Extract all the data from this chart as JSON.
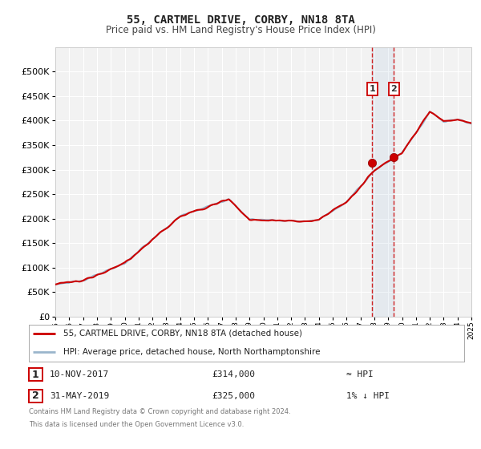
{
  "title": "55, CARTMEL DRIVE, CORBY, NN18 8TA",
  "subtitle": "Price paid vs. HM Land Registry's House Price Index (HPI)",
  "background_color": "#ffffff",
  "plot_bg_color": "#f2f2f2",
  "grid_color": "#ffffff",
  "hpi_color": "#9ab5cc",
  "price_color": "#cc0000",
  "sale1_date": 2017.86,
  "sale1_price": 314000,
  "sale2_date": 2019.41,
  "sale2_price": 325000,
  "ylim_max": 550000,
  "ylim_min": 0,
  "xlim_min": 1995,
  "xlim_max": 2025,
  "legend_label_price": "55, CARTMEL DRIVE, CORBY, NN18 8TA (detached house)",
  "legend_label_hpi": "HPI: Average price, detached house, North Northamptonshire",
  "annotation1_label": "1",
  "annotation2_label": "2",
  "table_row1": [
    "1",
    "10-NOV-2017",
    "£314,000",
    "≈ HPI"
  ],
  "table_row2": [
    "2",
    "31-MAY-2019",
    "£325,000",
    "1% ↓ HPI"
  ],
  "footer_line1": "Contains HM Land Registry data © Crown copyright and database right 2024.",
  "footer_line2": "This data is licensed under the Open Government Licence v3.0."
}
